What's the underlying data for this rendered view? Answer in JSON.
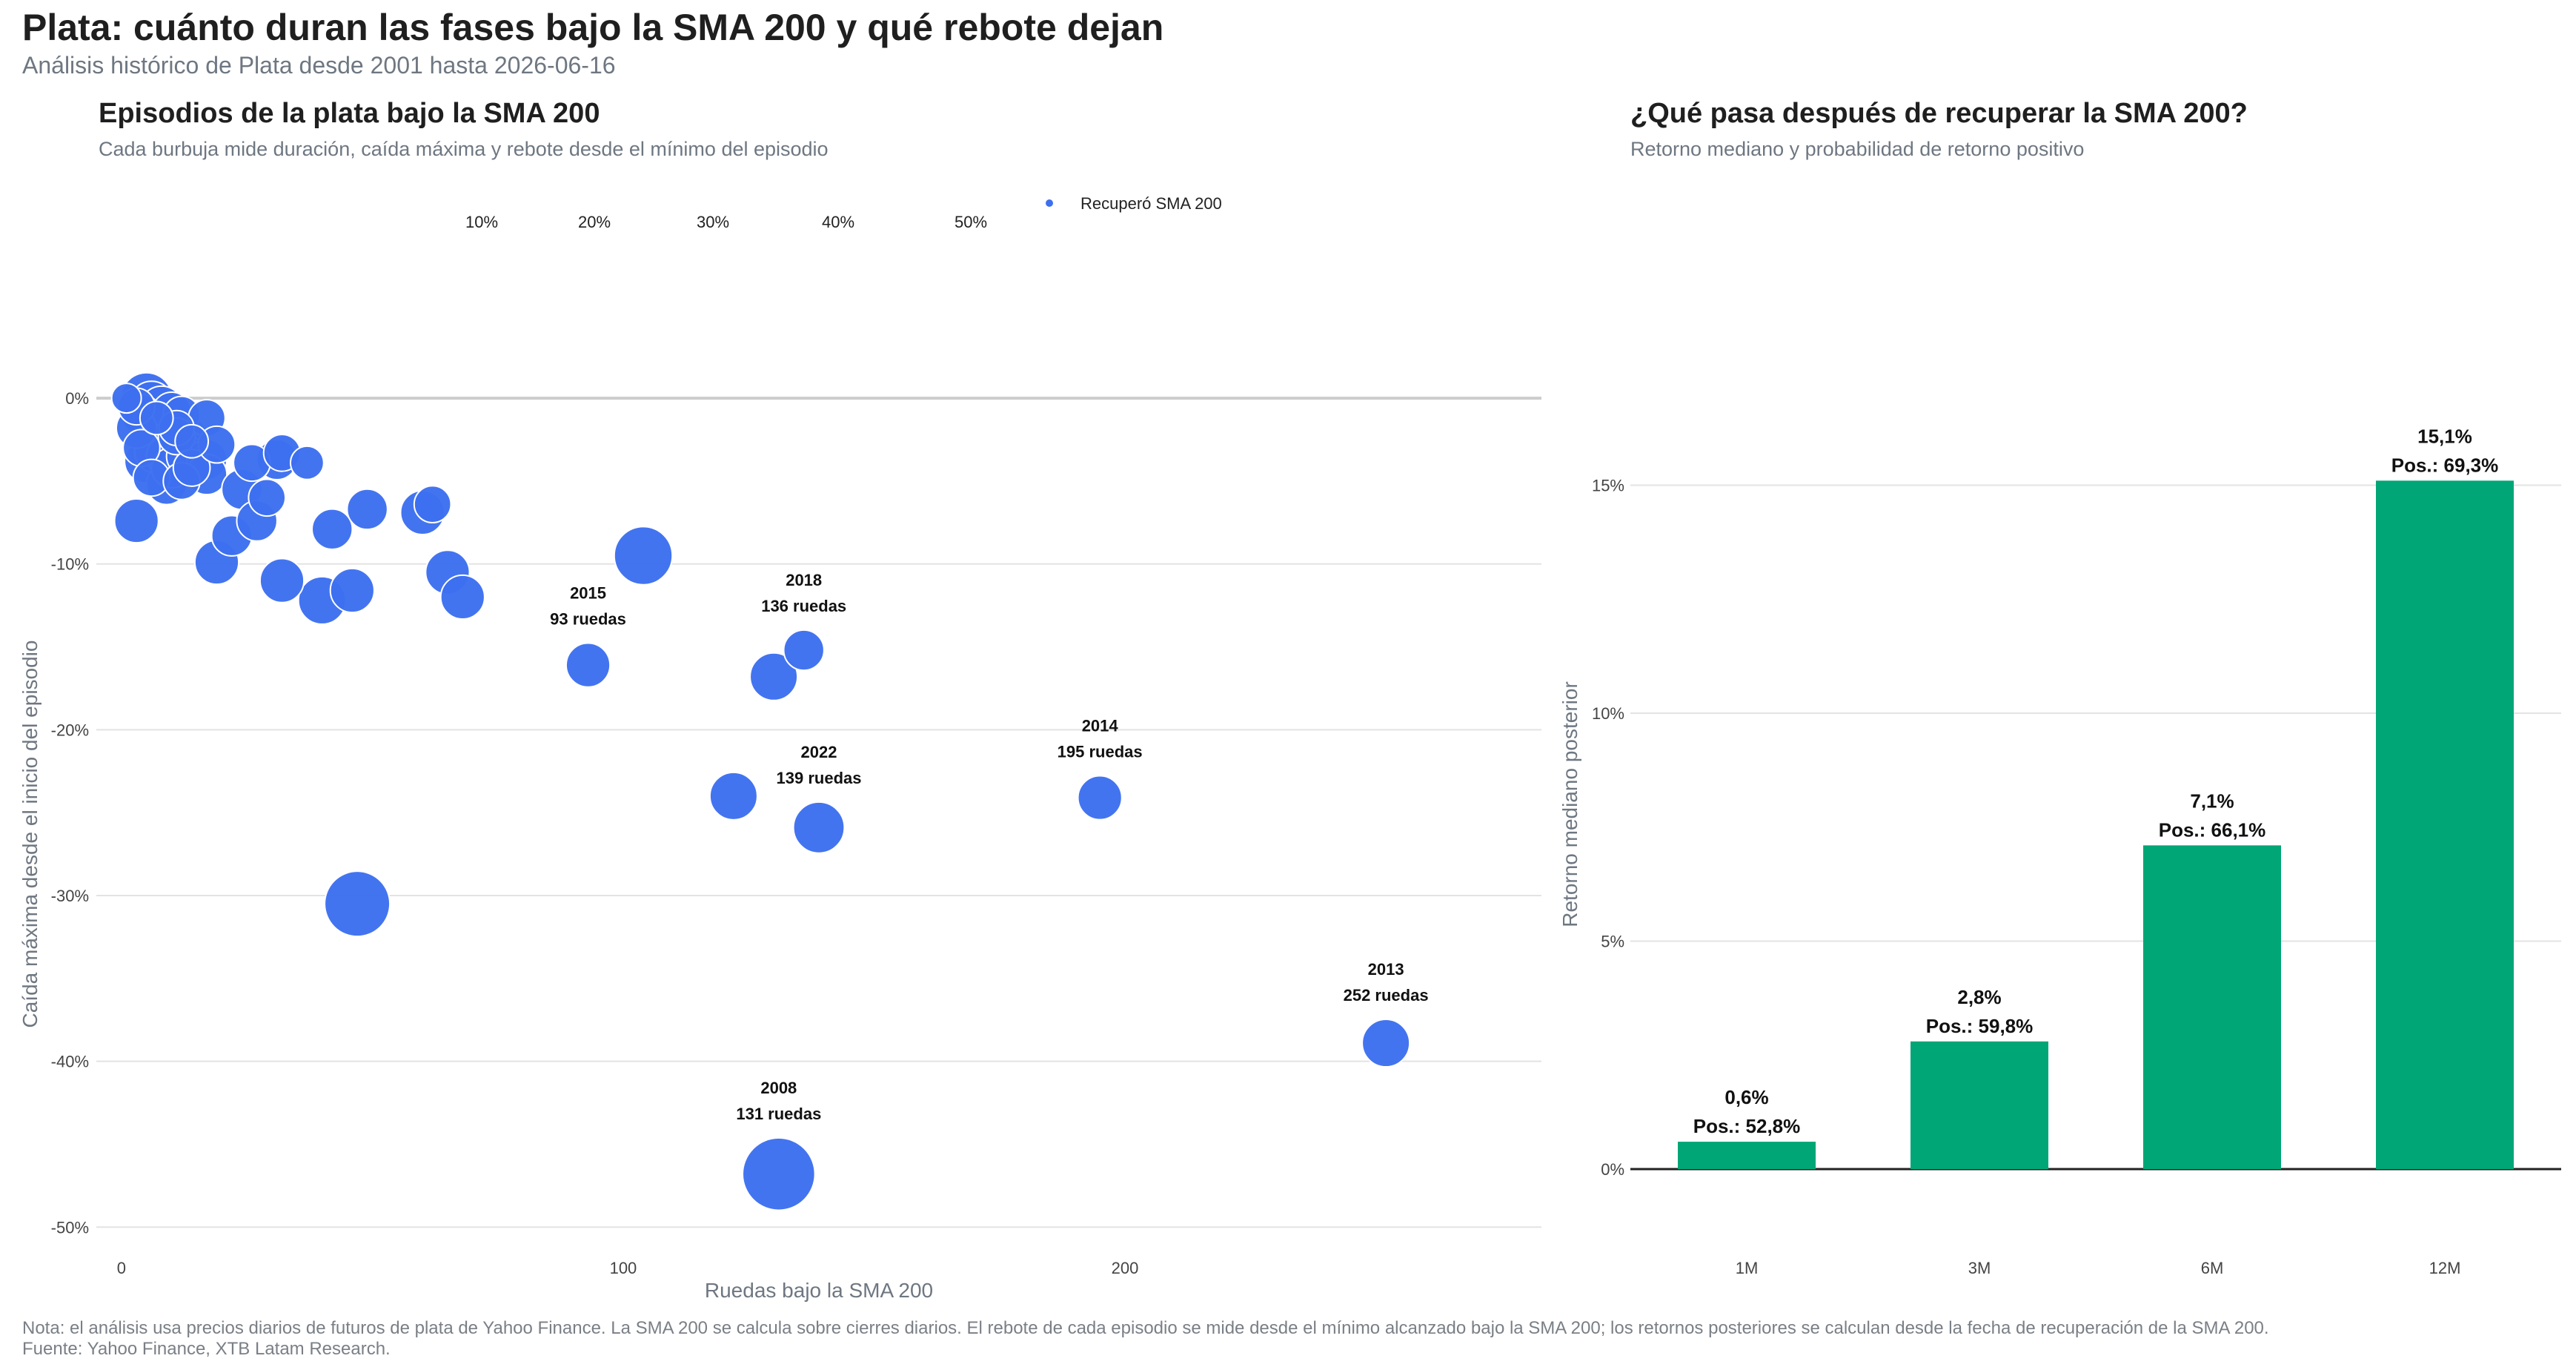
{
  "header": {
    "title": "Plata: cuánto duran las fases bajo la SMA 200 y qué rebote dejan",
    "subtitle": "Análisis histórico de Plata desde 2001 hasta 2026-06-16"
  },
  "left_panel": {
    "title": "Episodios de la plata bajo la SMA 200",
    "subtitle": "Cada burbuja mide duración, caída máxima y rebote desde el mínimo del episodio"
  },
  "right_panel": {
    "title": "¿Qué pasa después de recuperar la SMA 200?",
    "subtitle": "Retorno mediano y probabilidad de retorno positivo"
  },
  "footer": {
    "note": "Nota: el análisis usa precios diarios de futuros de plata de Yahoo Finance. La SMA 200 se calcula sobre cierres diarios. El rebote de cada episodio se mide desde el mínimo alcanzado bajo la SMA 200; los retornos posteriores se calculan desde la fecha de recuperación de la SMA 200.",
    "source": "Fuente: Yahoo Finance, XTB Latam Research."
  },
  "colors": {
    "bubble": "#3d6ff0",
    "bar": "#00a676",
    "grid": "#e3e3e3",
    "zero_line": "#cccccc",
    "axis_text": "#444444",
    "axis_title": "#6e7781"
  },
  "chart_data": [
    {
      "type": "scatter",
      "title": "Episodios de la plata bajo la SMA 200",
      "subtitle": "Cada burbuja mide duración, caída máxima y rebote desde el mínimo del episodio",
      "xlabel": "Ruedas bajo la SMA 200",
      "ylabel": "Caída máxima desde el inicio del episodio",
      "xlim": [
        -5,
        283
      ],
      "ylim": [
        -52,
        3
      ],
      "x_ticks": [
        0,
        100,
        200
      ],
      "x_tick_labels": [
        "0",
        "100",
        "200"
      ],
      "y_ticks": [
        0,
        -10,
        -20,
        -30,
        -40,
        -50
      ],
      "y_tick_labels": [
        "0%",
        "-10%",
        "-20%",
        "-30%",
        "-40%",
        "-50%"
      ],
      "grid": true,
      "legend": {
        "placement": "top",
        "size_labels": [
          "10%",
          "20%",
          "30%",
          "40%",
          "50%"
        ],
        "series_label": "Recuperó SMA 200"
      },
      "size_legend_values": [
        10,
        20,
        30,
        40,
        50
      ],
      "series": [
        {
          "name": "Recuperó SMA 200",
          "points": [
            {
              "x": 1,
              "y": 0,
              "size": 10
            },
            {
              "x": 3,
              "y": -0.5,
              "size": 14
            },
            {
              "x": 4,
              "y": -1,
              "size": 16
            },
            {
              "x": 5,
              "y": 0,
              "size": 22
            },
            {
              "x": 6,
              "y": -0.3,
              "size": 18
            },
            {
              "x": 7,
              "y": -1.2,
              "size": 12
            },
            {
              "x": 8,
              "y": -0.6,
              "size": 18
            },
            {
              "x": 9,
              "y": -1.5,
              "size": 16
            },
            {
              "x": 10,
              "y": -0.8,
              "size": 15
            },
            {
              "x": 11,
              "y": -1.8,
              "size": 13
            },
            {
              "x": 12,
              "y": -1,
              "size": 14
            },
            {
              "x": 13,
              "y": -2.3,
              "size": 16
            },
            {
              "x": 14,
              "y": -2.6,
              "size": 12
            },
            {
              "x": 3,
              "y": -1.8,
              "size": 16
            },
            {
              "x": 4,
              "y": -3,
              "size": 14
            },
            {
              "x": 5,
              "y": -3.8,
              "size": 18
            },
            {
              "x": 6,
              "y": -4.8,
              "size": 14
            },
            {
              "x": 7,
              "y": -3.2,
              "size": 18
            },
            {
              "x": 8,
              "y": -2.2,
              "size": 20
            },
            {
              "x": 9,
              "y": -3.5,
              "size": 16
            },
            {
              "x": 9,
              "y": -5.2,
              "size": 16
            },
            {
              "x": 10,
              "y": -4.2,
              "size": 16
            },
            {
              "x": 10,
              "y": -2.8,
              "size": 20
            },
            {
              "x": 11,
              "y": -2.3,
              "size": 14
            },
            {
              "x": 12,
              "y": -5,
              "size": 14
            },
            {
              "x": 13,
              "y": -3.5,
              "size": 16
            },
            {
              "x": 14,
              "y": -4.2,
              "size": 14
            },
            {
              "x": 17,
              "y": -1.2,
              "size": 14
            },
            {
              "x": 17,
              "y": -3.7,
              "size": 16
            },
            {
              "x": 17,
              "y": -4.6,
              "size": 16
            },
            {
              "x": 19,
              "y": -2.8,
              "size": 14
            },
            {
              "x": 3,
              "y": -7.4,
              "size": 18
            },
            {
              "x": 19,
              "y": -9.9,
              "size": 18
            },
            {
              "x": 22,
              "y": -8.3,
              "size": 16
            },
            {
              "x": 24,
              "y": -5.5,
              "size": 16
            },
            {
              "x": 26,
              "y": -3.9,
              "size": 14
            },
            {
              "x": 27,
              "y": -7.4,
              "size": 16
            },
            {
              "x": 29,
              "y": -6,
              "size": 14
            },
            {
              "x": 31,
              "y": -3.7,
              "size": 16
            },
            {
              "x": 32,
              "y": -3.3,
              "size": 14
            },
            {
              "x": 32,
              "y": -11,
              "size": 18
            },
            {
              "x": 37,
              "y": -3.9,
              "size": 12
            },
            {
              "x": 40,
              "y": -12.2,
              "size": 20
            },
            {
              "x": 42,
              "y": -7.9,
              "size": 16
            },
            {
              "x": 46,
              "y": -11.6,
              "size": 18
            },
            {
              "x": 47,
              "y": -30.5,
              "size": 30
            },
            {
              "x": 49,
              "y": -6.7,
              "size": 16
            },
            {
              "x": 60,
              "y": -6.9,
              "size": 18
            },
            {
              "x": 62,
              "y": -6.4,
              "size": 14
            },
            {
              "x": 65,
              "y": -10.5,
              "size": 18
            },
            {
              "x": 68,
              "y": -12,
              "size": 18
            },
            {
              "x": 93,
              "y": -16.1,
              "size": 18
            },
            {
              "x": 104,
              "y": -9.5,
              "size": 26
            },
            {
              "x": 122,
              "y": -24,
              "size": 20
            },
            {
              "x": 131,
              "y": -46.8,
              "size": 34
            },
            {
              "x": 130,
              "y": -16.8,
              "size": 20
            },
            {
              "x": 136,
              "y": -15.2,
              "size": 16
            },
            {
              "x": 139,
              "y": -25.9,
              "size": 22
            },
            {
              "x": 195,
              "y": -24.1,
              "size": 18
            },
            {
              "x": 252,
              "y": -38.9,
              "size": 20
            }
          ]
        }
      ],
      "annotations": [
        {
          "x": 93,
          "y": -16.1,
          "year": "2015",
          "duration": "93 ruedas"
        },
        {
          "x": 136,
          "y": -15.2,
          "year": "2018",
          "duration": "136 ruedas"
        },
        {
          "x": 195,
          "y": -24.1,
          "year": "2014",
          "duration": "195 ruedas"
        },
        {
          "x": 139,
          "y": -25.9,
          "year": "2022",
          "duration": "139 ruedas"
        },
        {
          "x": 252,
          "y": -38.9,
          "year": "2013",
          "duration": "252 ruedas"
        },
        {
          "x": 131,
          "y": -46.8,
          "year": "2008",
          "duration": "131 ruedas"
        }
      ]
    },
    {
      "type": "bar",
      "title": "¿Qué pasa después de recuperar la SMA 200?",
      "subtitle": "Retorno mediano y probabilidad de retorno positivo",
      "xlabel": "",
      "ylabel": "Retorno mediano posterior",
      "categories": [
        "1M",
        "3M",
        "6M",
        "12M"
      ],
      "values": [
        0.6,
        2.8,
        7.1,
        15.1
      ],
      "positive_probability": [
        52.8,
        59.8,
        66.1,
        69.3
      ],
      "value_labels": [
        "0,6%",
        "2,8%",
        "7,1%",
        "15,1%"
      ],
      "probability_labels": [
        "Pos.: 52,8%",
        "Pos.: 59,8%",
        "Pos.: 66,1%",
        "Pos.: 69,3%"
      ],
      "ylim": [
        -2,
        18
      ],
      "y_ticks": [
        0,
        5,
        10,
        15
      ],
      "y_tick_labels": [
        "0%",
        "5%",
        "10%",
        "15%"
      ],
      "grid": true
    }
  ]
}
